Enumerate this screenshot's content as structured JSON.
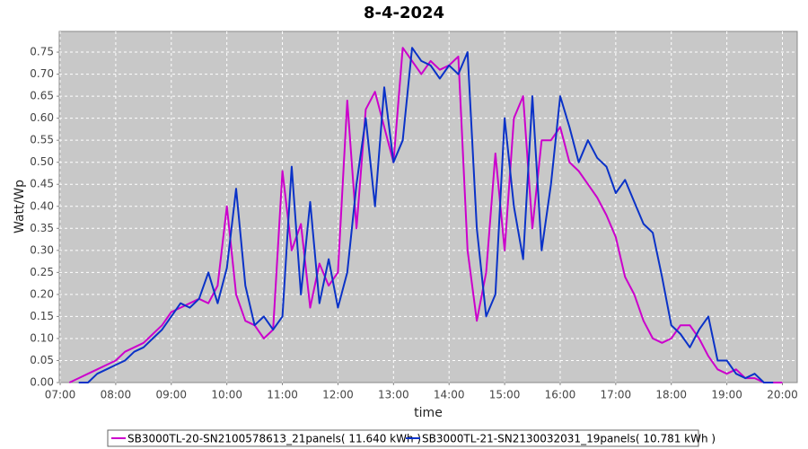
{
  "chart_data": {
    "type": "line",
    "title": "8-4-2024",
    "xlabel": "time",
    "ylabel": "Watt/Wp",
    "x": [
      "07:10",
      "07:20",
      "07:30",
      "07:40",
      "07:50",
      "08:00",
      "08:10",
      "08:20",
      "08:30",
      "08:40",
      "08:50",
      "09:00",
      "09:10",
      "09:20",
      "09:30",
      "09:40",
      "09:50",
      "10:00",
      "10:10",
      "10:20",
      "10:30",
      "10:40",
      "10:50",
      "11:00",
      "11:10",
      "11:20",
      "11:30",
      "11:40",
      "11:50",
      "12:00",
      "12:10",
      "12:20",
      "12:30",
      "12:40",
      "12:50",
      "13:00",
      "13:10",
      "13:20",
      "13:30",
      "13:40",
      "13:50",
      "14:00",
      "14:10",
      "14:20",
      "14:30",
      "14:40",
      "14:50",
      "15:00",
      "15:10",
      "15:20",
      "15:30",
      "15:40",
      "15:50",
      "16:00",
      "16:10",
      "16:20",
      "16:30",
      "16:40",
      "16:50",
      "17:00",
      "17:10",
      "17:20",
      "17:30",
      "17:40",
      "17:50",
      "18:00",
      "18:10",
      "18:20",
      "18:30",
      "18:40",
      "18:50",
      "19:00",
      "19:10",
      "19:20",
      "19:30",
      "19:40",
      "19:50",
      "20:00"
    ],
    "series": [
      {
        "name": "SB3000TL-20-SN2100578613_21panels( 11.640 kWh )",
        "color": "#cc00cc",
        "values": [
          0.0,
          0.01,
          0.02,
          0.03,
          0.04,
          0.05,
          0.07,
          0.08,
          0.09,
          0.11,
          0.13,
          0.16,
          0.17,
          0.18,
          0.19,
          0.18,
          0.22,
          0.4,
          0.2,
          0.14,
          0.13,
          0.1,
          0.12,
          0.48,
          0.3,
          0.36,
          0.17,
          0.27,
          0.22,
          0.25,
          0.64,
          0.35,
          0.62,
          0.66,
          0.58,
          0.5,
          0.76,
          0.73,
          0.7,
          0.73,
          0.71,
          0.72,
          0.74,
          0.3,
          0.14,
          0.25,
          0.52,
          0.3,
          0.6,
          0.65,
          0.35,
          0.55,
          0.55,
          0.58,
          0.5,
          0.48,
          0.45,
          0.42,
          0.38,
          0.33,
          0.24,
          0.2,
          0.14,
          0.1,
          0.09,
          0.1,
          0.13,
          0.13,
          0.1,
          0.06,
          0.03,
          0.02,
          0.03,
          0.01,
          0.01,
          0.0,
          0.0,
          0.0
        ]
      },
      {
        "name": "SB3000TL-21-SN2130032031_19panels( 10.781 kWh )",
        "color": "#0a32c8",
        "values": [
          null,
          0.0,
          0.0,
          0.02,
          0.03,
          0.04,
          0.05,
          0.07,
          0.08,
          0.1,
          0.12,
          0.15,
          0.18,
          0.17,
          0.19,
          0.25,
          0.18,
          0.26,
          0.44,
          0.22,
          0.13,
          0.15,
          0.12,
          0.15,
          0.49,
          0.2,
          0.41,
          0.18,
          0.28,
          0.17,
          0.25,
          0.45,
          0.6,
          0.4,
          0.67,
          0.5,
          0.55,
          0.76,
          0.73,
          0.72,
          0.69,
          0.72,
          0.7,
          0.75,
          0.35,
          0.15,
          0.2,
          0.6,
          0.4,
          0.28,
          0.65,
          0.3,
          0.45,
          0.65,
          0.58,
          0.5,
          0.55,
          0.51,
          0.49,
          0.43,
          0.46,
          0.41,
          0.36,
          0.34,
          0.24,
          0.13,
          0.11,
          0.08,
          0.12,
          0.15,
          0.05,
          0.05,
          0.02,
          0.01,
          0.02,
          0.0,
          0.0,
          null
        ]
      }
    ],
    "xlim": [
      "06:59",
      "20:16"
    ],
    "xticks": [
      "07:00",
      "08:00",
      "09:00",
      "10:00",
      "11:00",
      "12:00",
      "13:00",
      "14:00",
      "15:00",
      "16:00",
      "17:00",
      "18:00",
      "19:00",
      "20:00"
    ],
    "ylim": [
      0,
      0.797
    ],
    "yticks": [
      {
        "value": 0,
        "label": "0.00"
      },
      {
        "value": 0.05,
        "label": "0.05"
      },
      {
        "value": 0.1,
        "label": "0.10"
      },
      {
        "value": 0.15,
        "label": "0.15"
      },
      {
        "value": 0.2,
        "label": "0.20"
      },
      {
        "value": 0.25,
        "label": "0.25"
      },
      {
        "value": 0.3,
        "label": "0.30"
      },
      {
        "value": 0.35,
        "label": "0.35"
      },
      {
        "value": 0.4,
        "label": "0.40"
      },
      {
        "value": 0.45,
        "label": "0.45"
      },
      {
        "value": 0.5,
        "label": "0.50"
      },
      {
        "value": 0.55,
        "label": "0.55"
      },
      {
        "value": 0.6,
        "label": "0.60"
      },
      {
        "value": 0.65,
        "label": "0.65"
      },
      {
        "value": 0.7,
        "label": "0.70"
      },
      {
        "value": 0.75,
        "label": "0.75"
      }
    ],
    "grid": true
  }
}
